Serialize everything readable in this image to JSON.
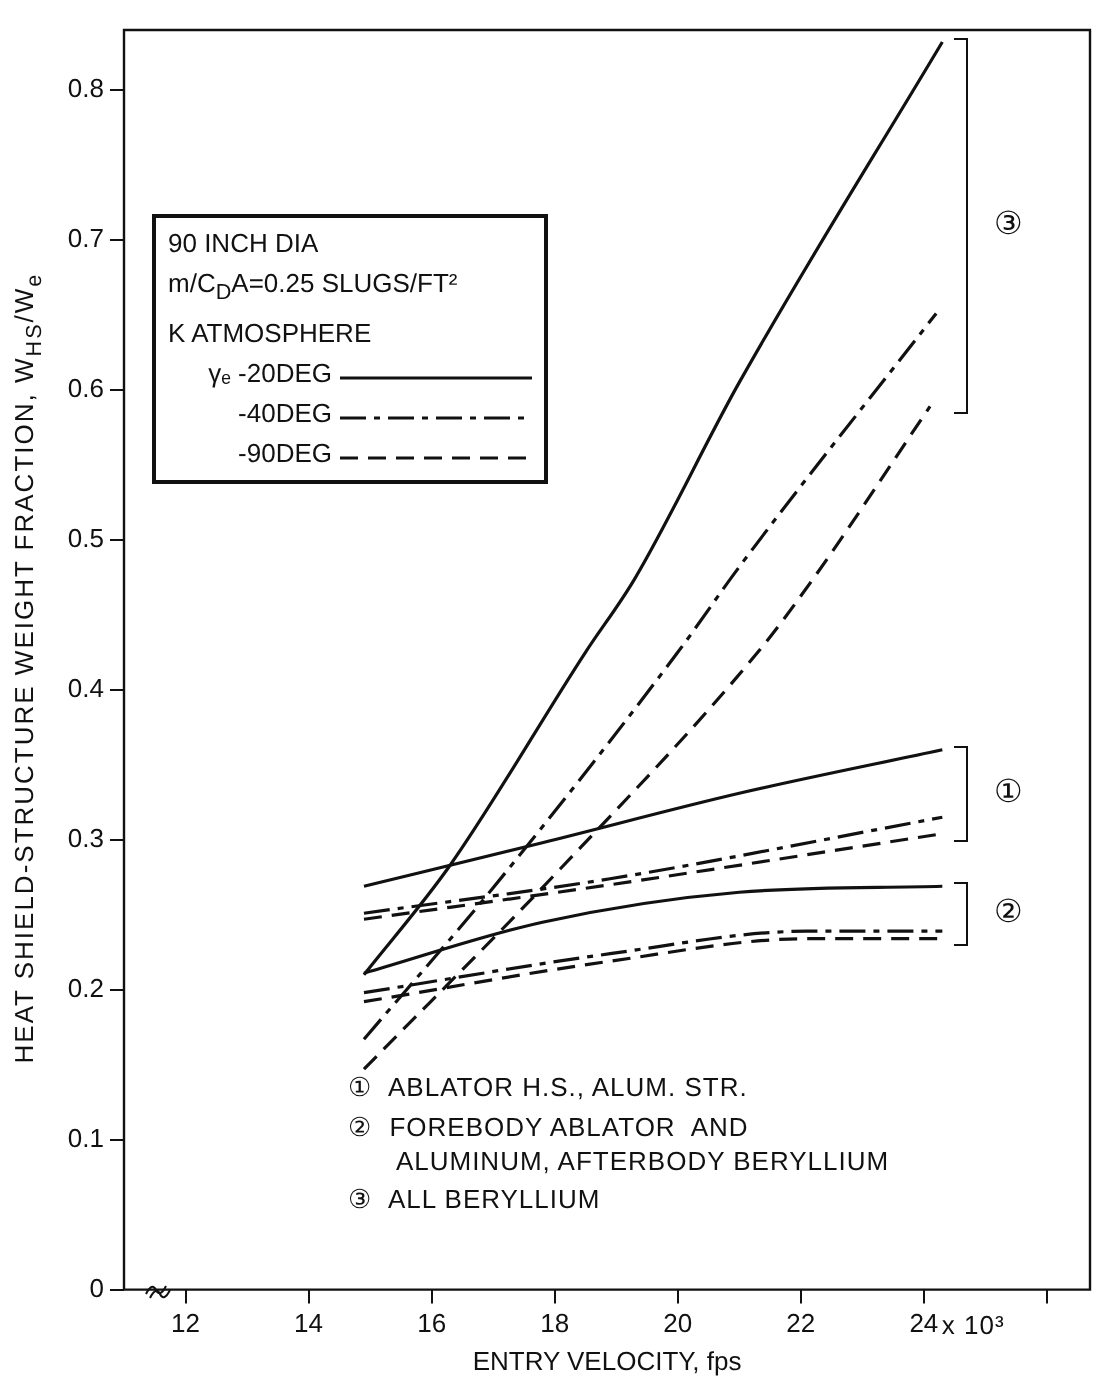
{
  "chart_data": {
    "type": "line",
    "xlabel": "ENTRY VELOCITY, fps",
    "ylabel": "HEAT SHIELD-STRUCTURE WEIGHT FRACTION, W$_{HS}$/W$_{e}$",
    "xlim": [
      11,
      26.7
    ],
    "ylim": [
      0,
      0.84
    ],
    "xticks": [
      12,
      14,
      16,
      18,
      20,
      22,
      24,
      {
        "value": 26,
        "label": null
      }
    ],
    "yticks": [
      0,
      0.1,
      0.2,
      0.3,
      0.4,
      0.5,
      0.6,
      0.7,
      0.8
    ],
    "grid": false,
    "legend": "top left",
    "marker": "none",
    "legend_title": "90 INCH DIA\nm/C$_{D}$A=0.25 SLUGS/FT²\nK ATMOSPHERE",
    "series": [
      {
        "name": "γₑ -20DEG",
        "color": "#111111",
        "line_style": "solid",
        "x": [
          14.9,
          16.3,
          18.5,
          19.3,
          21.0,
          24.3
        ],
        "values": [
          0.21,
          0.283,
          0.425,
          0.474,
          0.605,
          0.832
        ]
      },
      {
        "name": "-40DEG",
        "color": "#111111",
        "line_style": "dashdot",
        "x": [
          14.9,
          17.0,
          20.0,
          21.0,
          24.2
        ],
        "values": [
          0.167,
          0.268,
          0.425,
          0.482,
          0.651
        ]
      },
      {
        "name": "-90DEG",
        "color": "#111111",
        "line_style": "dashed",
        "x": [
          14.9,
          18.1,
          21.3,
          22.2,
          24.1
        ],
        "values": [
          0.147,
          0.281,
          0.425,
          0.474,
          0.589
        ]
      },
      {
        "color": "#111111",
        "line_style": "solid",
        "x": [
          14.9,
          17.8,
          21.0,
          24.3
        ],
        "values": [
          0.269,
          0.298,
          0.331,
          0.36
        ]
      },
      {
        "color": "#111111",
        "line_style": "dashdot",
        "x": [
          14.9,
          18.9,
          24.3
        ],
        "values": [
          0.251,
          0.274,
          0.315
        ]
      },
      {
        "color": "#111111",
        "line_style": "dashed",
        "x": [
          14.9,
          18.9,
          24.3
        ],
        "values": [
          0.247,
          0.27,
          0.304
        ]
      },
      {
        "color": "#111111",
        "line_style": "solid",
        "x": [
          14.9,
          17.8,
          21.0,
          24.3
        ],
        "values": [
          0.211,
          0.245,
          0.265,
          0.269
        ]
      },
      {
        "color": "#111111",
        "line_style": "dashdot",
        "x": [
          14.9,
          18.9,
          22.1,
          24.3
        ],
        "values": [
          0.198,
          0.224,
          0.239,
          0.239
        ]
      },
      {
        "color": "#111111",
        "line_style": "dashed",
        "x": [
          14.9,
          18.9,
          22.1,
          24.3
        ],
        "values": [
          0.192,
          0.219,
          0.234,
          0.234
        ]
      }
    ],
    "annotations": [
      "③",
      "①",
      "②",
      "①  ABLATOR H.S., ALUM. STR.",
      "②  FOREBODY ABLATOR  AND\nALUMINUM, AFTERBODY BERYLLIUM",
      "③  ALL BERYLLIUM",
      "x 10³"
    ]
  }
}
